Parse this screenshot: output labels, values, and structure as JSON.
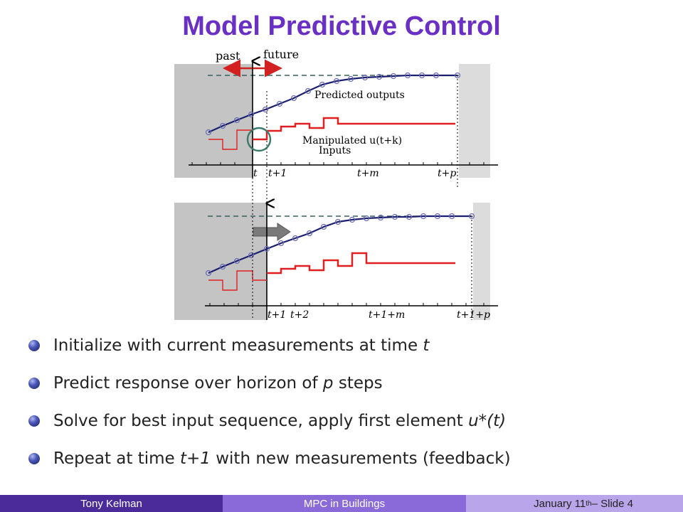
{
  "title": "Model Predictive Control",
  "figure": {
    "top": {
      "past_label": "past",
      "future_label": "future",
      "predicted_label": "Predicted outputs",
      "manipulated_label": "Manipulated u(t+k)",
      "inputs_label": "Inputs",
      "ticks": [
        "t",
        "t+1",
        "t+m",
        "t+p"
      ]
    },
    "bottom": {
      "ticks": [
        "t+1",
        "t+2",
        "t+1+m",
        "t+1+p"
      ]
    }
  },
  "bullets": [
    {
      "pre": "Initialize with current measurements at time ",
      "em": "t",
      "post": ""
    },
    {
      "pre": "Predict response over horizon of ",
      "em": "p",
      "post": " steps"
    },
    {
      "pre": "Solve for best input sequence, apply first element ",
      "em": "u*(t)",
      "post": ""
    },
    {
      "pre": "Repeat at time ",
      "em": "t+1",
      "post": " with new measurements (feedback)"
    }
  ],
  "footer": {
    "author": "Tony Kelman",
    "talk": "MPC in Buildings",
    "date_prefix": "January 11",
    "date_sup": "th",
    "date_suffix": " – Slide 4"
  },
  "colors": {
    "title": "#6a2fc4",
    "output_line": "#1b1f6e",
    "input_line": "#e02020",
    "footer_left": "#4b2a9a",
    "footer_mid": "#8a6ad8",
    "footer_right": "#b9a6ea"
  }
}
